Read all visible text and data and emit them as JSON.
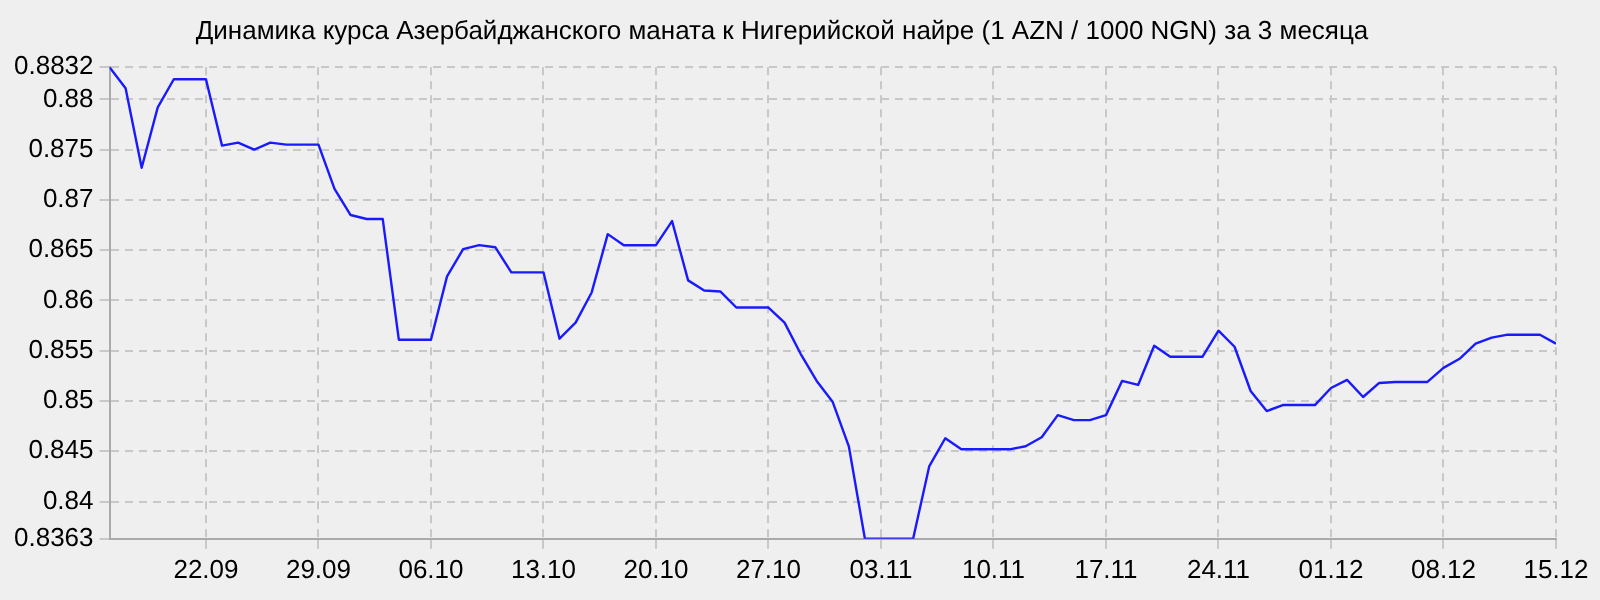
{
  "chart_data": {
    "type": "line",
    "title": "Динамика курса Азербайджанского маната к Нигерийской найре (1 AZN / 1000 NGN) за 3 месяца",
    "x": [
      "--09-16",
      "--09-17",
      "--09-18",
      "--09-19",
      "--09-20",
      "--09-21",
      "--09-22",
      "--09-23",
      "--09-24",
      "--09-25",
      "--09-26",
      "--09-27",
      "--09-28",
      "--09-29",
      "--09-30",
      "--10-01",
      "--10-02",
      "--10-03",
      "--10-04",
      "--10-05",
      "--10-06",
      "--10-07",
      "--10-08",
      "--10-09",
      "--10-10",
      "--10-11",
      "--10-12",
      "--10-13",
      "--10-14",
      "--10-15",
      "--10-16",
      "--10-17",
      "--10-18",
      "--10-19",
      "--10-20",
      "--10-21",
      "--10-22",
      "--10-23",
      "--10-24",
      "--10-25",
      "--10-26",
      "--10-27",
      "--10-28",
      "--10-29",
      "--10-30",
      "--10-31",
      "--11-01",
      "--11-02",
      "--11-03",
      "--11-04",
      "--11-05",
      "--11-06",
      "--11-07",
      "--11-08",
      "--11-09",
      "--11-10",
      "--11-11",
      "--11-12",
      "--11-13",
      "--11-14",
      "--11-15",
      "--11-16",
      "--11-17",
      "--11-18",
      "--11-19",
      "--11-20",
      "--11-21",
      "--11-22",
      "--11-23",
      "--11-24",
      "--11-25",
      "--11-26",
      "--11-27",
      "--11-28",
      "--11-29",
      "--11-30",
      "--12-01",
      "--12-02",
      "--12-03",
      "--12-04",
      "--12-05",
      "--12-06",
      "--12-07",
      "--12-08",
      "--12-09",
      "--12-10",
      "--12-11",
      "--12-12",
      "--12-13",
      "--12-14",
      "--12-15"
    ],
    "series": [
      {
        "color": "#1a1aff",
        "values": [
          0.8832,
          0.8811,
          0.8732,
          0.8792,
          0.882,
          0.882,
          0.882,
          0.8754,
          0.8757,
          0.875,
          0.8757,
          0.8755,
          0.8755,
          0.8755,
          0.8711,
          0.8685,
          0.8681,
          0.8681,
          0.8561,
          0.8561,
          0.8561,
          0.8624,
          0.8651,
          0.8655,
          0.8653,
          0.8628,
          0.8628,
          0.8628,
          0.8562,
          0.8578,
          0.8608,
          0.8666,
          0.8655,
          0.8655,
          0.8655,
          0.8679,
          0.862,
          0.861,
          0.8609,
          0.8593,
          0.8593,
          0.8593,
          0.8578,
          0.8547,
          0.852,
          0.8499,
          0.8455,
          0.8363,
          0.8363,
          0.8363,
          0.8363,
          0.8435,
          0.8463,
          0.8452,
          0.8452,
          0.8452,
          0.8452,
          0.8455,
          0.8464,
          0.8486,
          0.8481,
          0.8481,
          0.8486,
          0.852,
          0.8516,
          0.8555,
          0.8544,
          0.8544,
          0.8544,
          0.857,
          0.8554,
          0.851,
          0.849,
          0.8496,
          0.8496,
          0.8496,
          0.8513,
          0.8521,
          0.8504,
          0.8518,
          0.8519,
          0.8519,
          0.8519,
          0.8533,
          0.8542,
          0.8557,
          0.8563,
          0.8566,
          0.8566,
          0.8566,
          0.8557
        ]
      }
    ],
    "xlim": [
      "--09-16",
      "--12-15"
    ],
    "xticks": [
      {
        "value": "--09-22",
        "label": "22.09"
      },
      {
        "value": "--09-29",
        "label": "29.09"
      },
      {
        "value": "--10-06",
        "label": "06.10"
      },
      {
        "value": "--10-13",
        "label": "13.10"
      },
      {
        "value": "--10-20",
        "label": "20.10"
      },
      {
        "value": "--10-27",
        "label": "27.10"
      },
      {
        "value": "--11-03",
        "label": "03.11"
      },
      {
        "value": "--11-10",
        "label": "10.11"
      },
      {
        "value": "--11-17",
        "label": "17.11"
      },
      {
        "value": "--11-24",
        "label": "24.11"
      },
      {
        "value": "--12-01",
        "label": "01.12"
      },
      {
        "value": "--12-08",
        "label": "08.12"
      },
      {
        "value": "--12-15",
        "label": "15.12"
      }
    ],
    "ylim": [
      0.8363,
      0.8832
    ],
    "yticks": [
      0.8363,
      0.84,
      0.845,
      0.85,
      0.855,
      0.86,
      0.865,
      0.87,
      0.875,
      0.88,
      0.8832
    ],
    "grid": true,
    "legend": false,
    "marker": "none",
    "line_style": "solid"
  }
}
